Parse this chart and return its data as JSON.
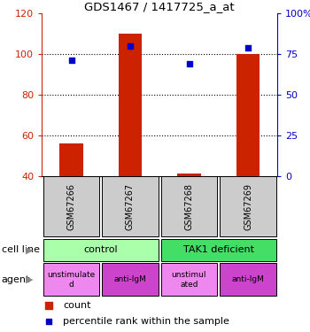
{
  "title": "GDS1467 / 1417725_a_at",
  "samples": [
    "GSM67266",
    "GSM67267",
    "GSM67268",
    "GSM67269"
  ],
  "bar_values": [
    56,
    110,
    41,
    100
  ],
  "bar_base": 40,
  "bar_color": "#cc2200",
  "scatter_pct": [
    71,
    80,
    69,
    79
  ],
  "scatter_color": "#0000cc",
  "ylim_left": [
    40,
    120
  ],
  "ylim_right": [
    0,
    100
  ],
  "yticks_left": [
    40,
    60,
    80,
    100,
    120
  ],
  "yticks_right": [
    0,
    25,
    50,
    75,
    100
  ],
  "yticklabels_right": [
    "0",
    "25",
    "50",
    "75",
    "100%"
  ],
  "left_tick_color": "#cc2200",
  "right_tick_color": "#0000cc",
  "cell_line_label": "cell line",
  "agent_label": "agent",
  "cell_line_groups": [
    {
      "label": "control",
      "span": [
        0,
        2
      ],
      "color": "#aaffaa"
    },
    {
      "label": "TAK1 deficient",
      "span": [
        2,
        4
      ],
      "color": "#44dd66"
    }
  ],
  "agent_groups": [
    {
      "label": "unstimulate\nd",
      "span": [
        0,
        1
      ],
      "color": "#ee88ee"
    },
    {
      "label": "anti-IgM",
      "span": [
        1,
        2
      ],
      "color": "#cc44cc"
    },
    {
      "label": "unstimul\nated",
      "span": [
        2,
        3
      ],
      "color": "#ee88ee"
    },
    {
      "label": "anti-IgM",
      "span": [
        3,
        4
      ],
      "color": "#cc44cc"
    }
  ],
  "legend_count_color": "#cc2200",
  "legend_percentile_color": "#0000cc",
  "sample_box_color": "#cccccc",
  "background_color": "#ffffff"
}
